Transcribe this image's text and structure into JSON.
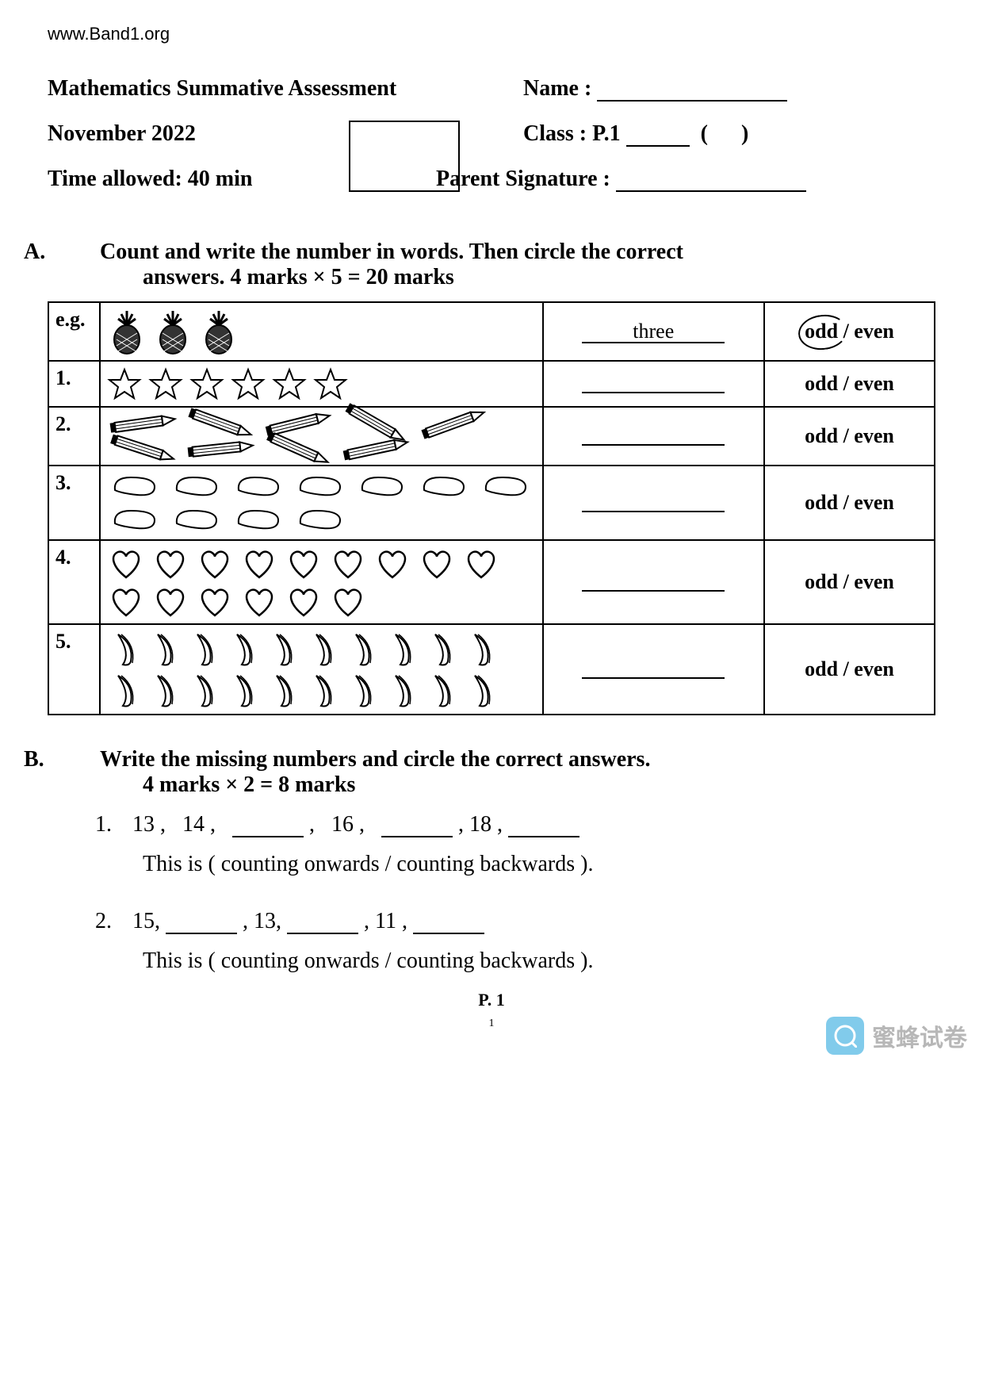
{
  "url": "www.Band1.org",
  "header": {
    "title": "Mathematics Summative Assessment",
    "date": "November 2022",
    "time": "Time allowed: 40 min",
    "name_label": "Name :",
    "class_label": "Class : P.1",
    "class_paren_open": "(",
    "class_paren_close": ")",
    "parent_sig_label": "Parent Signature :"
  },
  "sectionA": {
    "letter": "A.",
    "heading_line1": "Count and write the number in words.    Then circle the correct",
    "heading_line2": "answers.    4 marks × 5 = 20 marks",
    "example_label": "e.g.",
    "example_answer": "three",
    "odd_even": "odd / even",
    "odd_text": "odd",
    "even_text": "even",
    "rows": [
      {
        "num": "1.",
        "icon": "star",
        "count": 6,
        "answer": "",
        "oe": "odd / even"
      },
      {
        "num": "2.",
        "icon": "pencil",
        "count": 9,
        "answer": "",
        "oe": "odd / even"
      },
      {
        "num": "3.",
        "icon": "bean",
        "count": 11,
        "answer": "",
        "oe": "odd / even"
      },
      {
        "num": "4.",
        "icon": "heart",
        "count": 15,
        "answer": "",
        "oe": "odd / even"
      },
      {
        "num": "5.",
        "icon": "banana",
        "count": 20,
        "answer": "",
        "oe": "odd / even"
      }
    ]
  },
  "sectionB": {
    "letter": "B.",
    "heading_line1": "Write the missing numbers and circle the correct answers.",
    "heading_line2": "4 marks × 2 = 8 marks",
    "q1_num": "1.",
    "q1_seq": [
      "13 ,",
      "14 ,",
      "",
      ",",
      "16 ,",
      "",
      ", 18 ,",
      ""
    ],
    "q1_text": "This is ( counting onwards / counting backwards ).",
    "q2_num": "2.",
    "q2_seq": [
      "15,",
      "",
      ", 13,",
      "",
      ", 11 ,",
      ""
    ],
    "q2_text": "This is ( counting onwards / counting backwards )."
  },
  "footer": {
    "page": "P. 1",
    "subpage": "1"
  },
  "watermark": {
    "text": "蜜蜂试卷"
  },
  "colors": {
    "text": "#000000",
    "bg": "#ffffff",
    "wm_icon": "#4db6e3",
    "wm_text": "#999999"
  }
}
